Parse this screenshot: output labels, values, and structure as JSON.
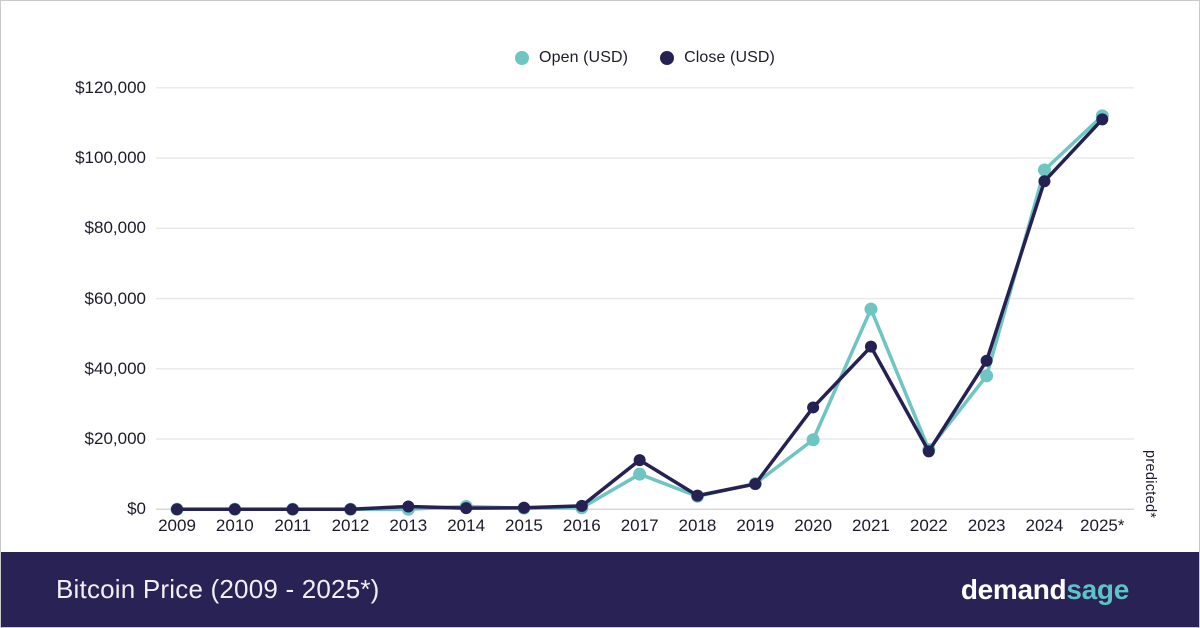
{
  "colors": {
    "teal": "#6ec5c1",
    "navy": "#262153",
    "grid": "#e8e8e8",
    "axis_line": "#d8d8d8",
    "text": "#1d1b29",
    "footer_bg": "#292254",
    "footer_text": "#f3eef3",
    "logo_sage": "#5ec3c6",
    "page_border": "#c9c9c9"
  },
  "chart_data": {
    "type": "line",
    "title": "Bitcoin Price (2009 - 2025*)",
    "x_labels": [
      "2009",
      "2010",
      "2011",
      "2012",
      "2013",
      "2014",
      "2015",
      "2016",
      "2017",
      "2018",
      "2019",
      "2020",
      "2021",
      "2022",
      "2023",
      "2024",
      "2025*"
    ],
    "series": [
      {
        "name": "Open (USD)",
        "color": "#6ec5c1",
        "values": [
          0,
          0,
          0.3,
          4.7,
          13.5,
          806,
          320,
          434,
          10000,
          3700,
          7300,
          19800,
          57000,
          17000,
          38000,
          96600,
          112000
        ]
      },
      {
        "name": "Close (USD)",
        "color": "#262153",
        "values": [
          0,
          0.3,
          4.7,
          13.5,
          806,
          318,
          430,
          960,
          14000,
          3900,
          7200,
          29000,
          46300,
          16500,
          42300,
          93400,
          111000
        ]
      }
    ],
    "y_ticks": {
      "values": [
        0,
        20000,
        40000,
        60000,
        80000,
        100000,
        120000
      ],
      "labels": [
        "$0",
        "$20,000",
        "$40,000",
        "$60,000",
        "$80,000",
        "$100,000",
        "$120,000"
      ]
    },
    "ylim": [
      0,
      120000
    ],
    "grid": true,
    "legend_position": "top-center",
    "annotation": "predicted*"
  },
  "footer": {
    "title": "Bitcoin Price (2009 - 2025*)",
    "logo": {
      "part1": "demand",
      "part2": "sage"
    }
  }
}
